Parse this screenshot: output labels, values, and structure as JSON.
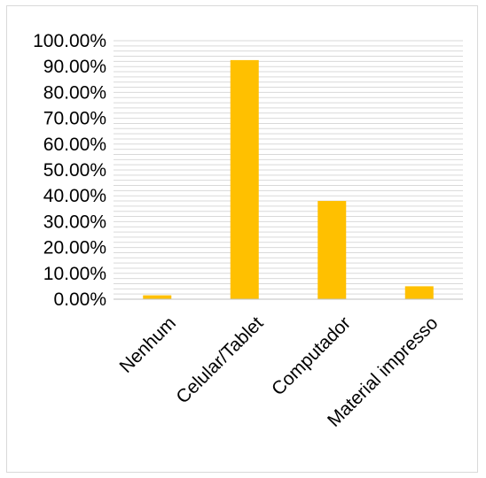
{
  "chart_data": {
    "type": "bar",
    "categories": [
      "Nenhum",
      "Celular/Tablet",
      "Computador",
      "Material impresso"
    ],
    "values": [
      1.5,
      92.5,
      38.0,
      5.0
    ],
    "title": "",
    "xlabel": "",
    "ylabel": "",
    "ylim": [
      0,
      100
    ],
    "yticks": [
      "0.00%",
      "10.00%",
      "20.00%",
      "30.00%",
      "40.00%",
      "50.00%",
      "60.00%",
      "70.00%",
      "80.00%",
      "90.00%",
      "100.00%"
    ],
    "ytick_values": [
      0,
      10,
      20,
      30,
      40,
      50,
      60,
      70,
      80,
      90,
      100
    ],
    "minor_gridline_step": 2,
    "grid": true,
    "legend": "none",
    "bar_color": "#FFC000",
    "gridline_color": "#d9d9d9"
  }
}
